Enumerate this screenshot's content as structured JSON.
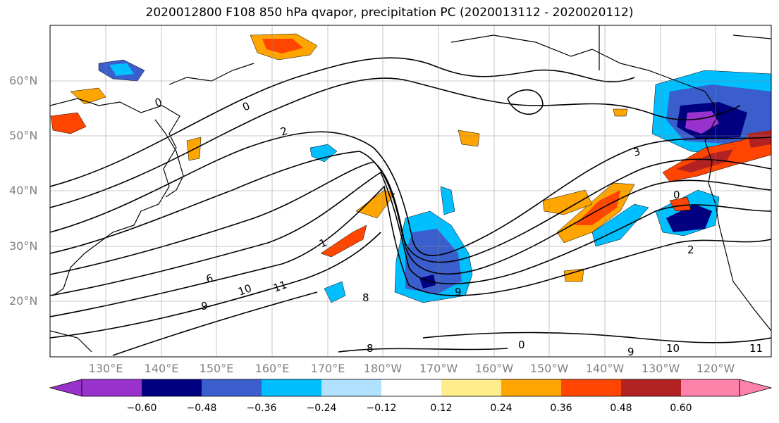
{
  "title": "2020012800 F108 850 hPa qvapor, precipitation PC (2020013112 - 2020020112)",
  "lat_labels": [
    "60°N",
    "50°N",
    "40°N",
    "30°N",
    "20°N"
  ],
  "lon_labels": [
    "130°E",
    "140°E",
    "150°E",
    "160°E",
    "170°E",
    "180°W",
    "170°W",
    "160°W",
    "150°W",
    "140°W",
    "130°W",
    "120°W"
  ],
  "colorbar": {
    "colors": [
      "#9932cc",
      "#000080",
      "#3a5fcd",
      "#00bfff",
      "#b0e2ff",
      "#ffffff",
      "#ffec8b",
      "#ffa500",
      "#ff4500",
      "#b22222",
      "#ff82ab"
    ],
    "tick_labels": [
      "−0.60",
      "−0.48",
      "−0.36",
      "−0.24",
      "−0.12",
      "0.12",
      "0.24",
      "0.36",
      "0.48",
      "0.60"
    ]
  },
  "contour_labels": [
    "0",
    "0",
    "2",
    "3",
    "0",
    "1",
    "6",
    "10",
    "11",
    "9",
    "8",
    "9",
    "0",
    "2",
    "8",
    "9",
    "10",
    "11"
  ]
}
